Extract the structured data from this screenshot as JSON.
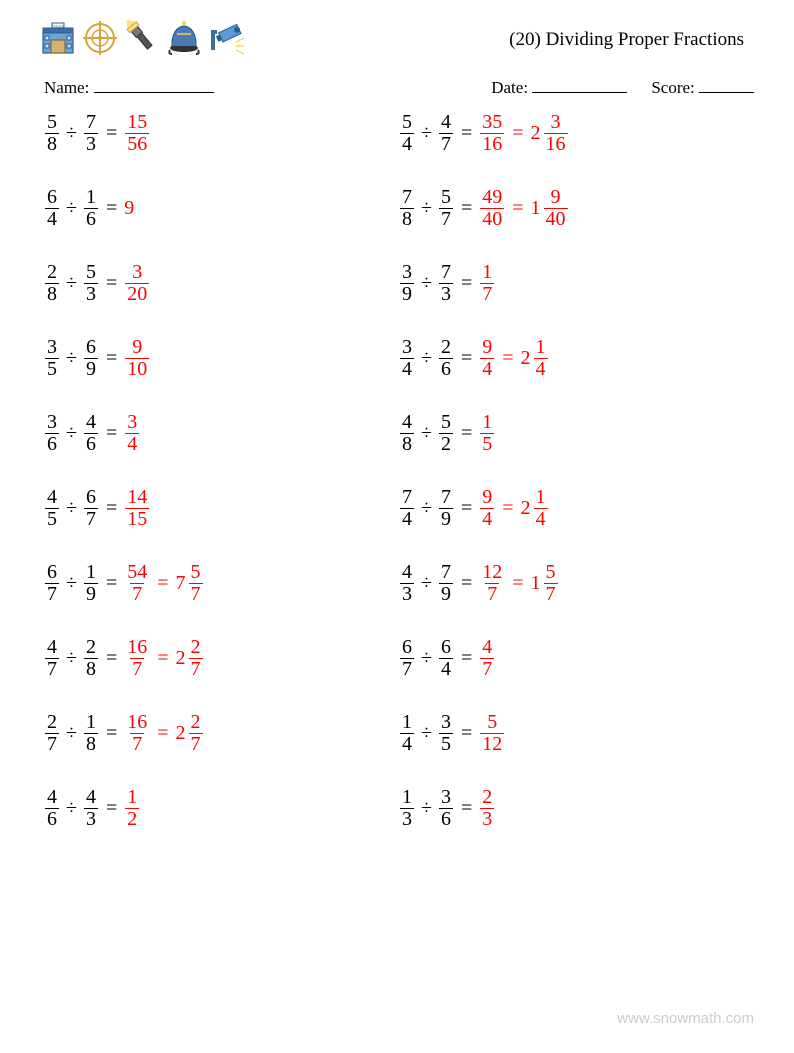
{
  "title": "(20) Dividing Proper Fractions",
  "labels": {
    "name": "Name:",
    "date": "Date:",
    "score": "Score:"
  },
  "colors": {
    "answer": "#ff0000",
    "text": "#000000",
    "background": "#ffffff",
    "watermark": "#cccccc"
  },
  "operators": {
    "divide": "÷",
    "equals": "="
  },
  "layout": {
    "columns": 2,
    "rows": 10,
    "font_family": "serif",
    "font_size_body": 20,
    "font_size_title": 19
  },
  "blanks": {
    "name_width": 120,
    "date_width": 95,
    "score_width": 55
  },
  "problems": [
    [
      {
        "a": {
          "n": 5,
          "d": 8
        },
        "b": {
          "n": 7,
          "d": 3
        },
        "ans": {
          "n": 15,
          "d": 56
        }
      },
      {
        "a": {
          "n": 5,
          "d": 4
        },
        "b": {
          "n": 4,
          "d": 7
        },
        "ans": {
          "n": 35,
          "d": 16
        },
        "mixed": {
          "w": 2,
          "n": 3,
          "d": 16
        }
      }
    ],
    [
      {
        "a": {
          "n": 6,
          "d": 4
        },
        "b": {
          "n": 1,
          "d": 6
        },
        "ans_int": 9
      },
      {
        "a": {
          "n": 7,
          "d": 8
        },
        "b": {
          "n": 5,
          "d": 7
        },
        "ans": {
          "n": 49,
          "d": 40
        },
        "mixed": {
          "w": 1,
          "n": 9,
          "d": 40
        }
      }
    ],
    [
      {
        "a": {
          "n": 2,
          "d": 8
        },
        "b": {
          "n": 5,
          "d": 3
        },
        "ans": {
          "n": 3,
          "d": 20
        }
      },
      {
        "a": {
          "n": 3,
          "d": 9
        },
        "b": {
          "n": 7,
          "d": 3
        },
        "ans": {
          "n": 1,
          "d": 7
        }
      }
    ],
    [
      {
        "a": {
          "n": 3,
          "d": 5
        },
        "b": {
          "n": 6,
          "d": 9
        },
        "ans": {
          "n": 9,
          "d": 10
        }
      },
      {
        "a": {
          "n": 3,
          "d": 4
        },
        "b": {
          "n": 2,
          "d": 6
        },
        "ans": {
          "n": 9,
          "d": 4
        },
        "mixed": {
          "w": 2,
          "n": 1,
          "d": 4
        }
      }
    ],
    [
      {
        "a": {
          "n": 3,
          "d": 6
        },
        "b": {
          "n": 4,
          "d": 6
        },
        "ans": {
          "n": 3,
          "d": 4
        }
      },
      {
        "a": {
          "n": 4,
          "d": 8
        },
        "b": {
          "n": 5,
          "d": 2
        },
        "ans": {
          "n": 1,
          "d": 5
        }
      }
    ],
    [
      {
        "a": {
          "n": 4,
          "d": 5
        },
        "b": {
          "n": 6,
          "d": 7
        },
        "ans": {
          "n": 14,
          "d": 15
        }
      },
      {
        "a": {
          "n": 7,
          "d": 4
        },
        "b": {
          "n": 7,
          "d": 9
        },
        "ans": {
          "n": 9,
          "d": 4
        },
        "mixed": {
          "w": 2,
          "n": 1,
          "d": 4
        }
      }
    ],
    [
      {
        "a": {
          "n": 6,
          "d": 7
        },
        "b": {
          "n": 1,
          "d": 9
        },
        "ans": {
          "n": 54,
          "d": 7
        },
        "mixed": {
          "w": 7,
          "n": 5,
          "d": 7
        }
      },
      {
        "a": {
          "n": 4,
          "d": 3
        },
        "b": {
          "n": 7,
          "d": 9
        },
        "ans": {
          "n": 12,
          "d": 7
        },
        "mixed": {
          "w": 1,
          "n": 5,
          "d": 7
        }
      }
    ],
    [
      {
        "a": {
          "n": 4,
          "d": 7
        },
        "b": {
          "n": 2,
          "d": 8
        },
        "ans": {
          "n": 16,
          "d": 7
        },
        "mixed": {
          "w": 2,
          "n": 2,
          "d": 7
        }
      },
      {
        "a": {
          "n": 6,
          "d": 7
        },
        "b": {
          "n": 6,
          "d": 4
        },
        "ans": {
          "n": 4,
          "d": 7
        }
      }
    ],
    [
      {
        "a": {
          "n": 2,
          "d": 7
        },
        "b": {
          "n": 1,
          "d": 8
        },
        "ans": {
          "n": 16,
          "d": 7
        },
        "mixed": {
          "w": 2,
          "n": 2,
          "d": 7
        }
      },
      {
        "a": {
          "n": 1,
          "d": 4
        },
        "b": {
          "n": 3,
          "d": 5
        },
        "ans": {
          "n": 5,
          "d": 12
        }
      }
    ],
    [
      {
        "a": {
          "n": 4,
          "d": 6
        },
        "b": {
          "n": 4,
          "d": 3
        },
        "ans": {
          "n": 1,
          "d": 2
        }
      },
      {
        "a": {
          "n": 1,
          "d": 3
        },
        "b": {
          "n": 3,
          "d": 6
        },
        "ans": {
          "n": 2,
          "d": 3
        }
      }
    ]
  ],
  "watermark": "www.snowmath.com"
}
